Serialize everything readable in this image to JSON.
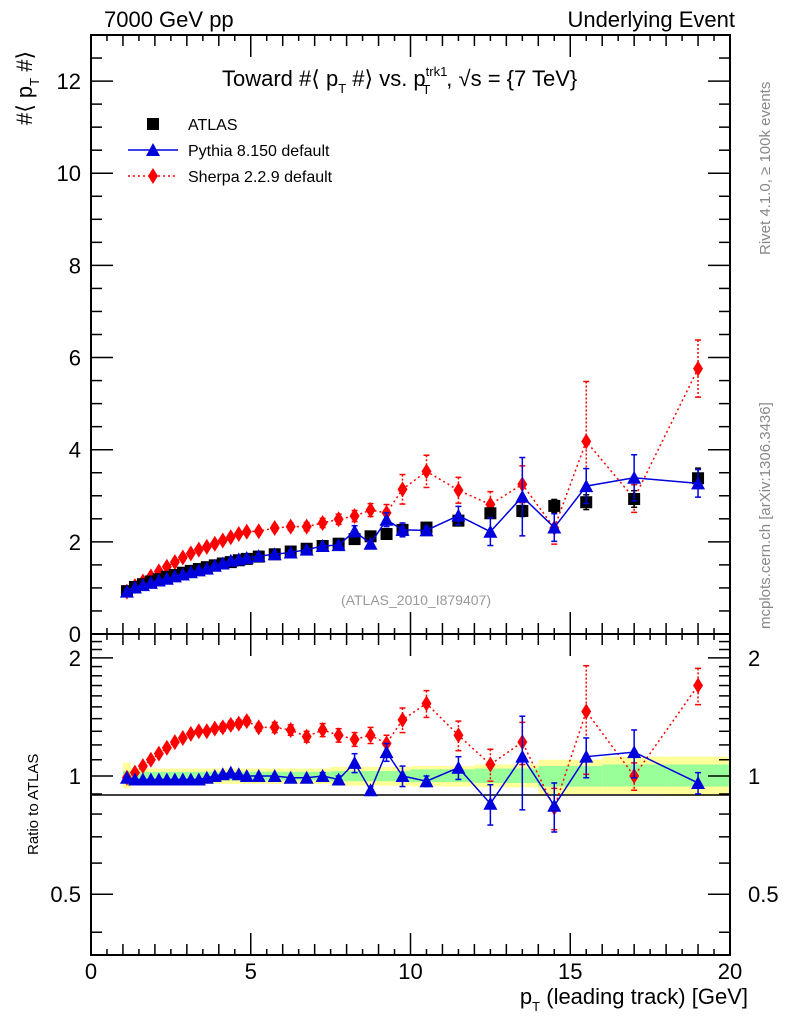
{
  "header": {
    "left": "7000 GeV pp",
    "right": "Underlying Event"
  },
  "side_text": {
    "rivet": "Rivet 4.1.0, ≥ 100k events",
    "mcplots": "mcplots.cern.ch [arXiv:1306.3436]"
  },
  "chart_data": [
    {
      "type": "line",
      "panel": "main",
      "title": "Toward #⟨ p_T #⟩ vs. p_T^trk1, √s = {7 TeV}",
      "title_parts": {
        "pre": "Toward #⟨ p",
        "sub1": "T",
        "mid": " #⟩ vs. p",
        "sup2": "trk1",
        "sub2": "T",
        "post": ", √s = {7 TeV}"
      },
      "ylabel": "#⟨ p_T #⟩",
      "xlabel": "",
      "xlim": [
        0,
        20
      ],
      "ylim": [
        0,
        13
      ],
      "xticks": [
        0,
        5,
        10,
        15,
        20
      ],
      "yticks": [
        0,
        2,
        4,
        6,
        8,
        10,
        12
      ],
      "ytick_labels": [
        "0",
        "2",
        "4",
        "6",
        "8",
        "10",
        "12"
      ],
      "watermark": "(ATLAS_2010_I879407)",
      "legend_position": "top-left",
      "x": [
        1.125,
        1.375,
        1.625,
        1.875,
        2.125,
        2.375,
        2.625,
        2.875,
        3.125,
        3.375,
        3.625,
        3.875,
        4.125,
        4.375,
        4.625,
        4.875,
        5.25,
        5.75,
        6.25,
        6.75,
        7.25,
        7.75,
        8.25,
        8.75,
        9.25,
        9.75,
        10.5,
        11.5,
        12.5,
        13.5,
        14.5,
        15.5,
        17.0,
        19.0
      ],
      "series": [
        {
          "name": "ATLAS",
          "color": "#000000",
          "marker": "square",
          "values": [
            0.93,
            1.02,
            1.08,
            1.14,
            1.19,
            1.24,
            1.28,
            1.33,
            1.37,
            1.41,
            1.45,
            1.49,
            1.53,
            1.56,
            1.6,
            1.63,
            1.68,
            1.73,
            1.79,
            1.85,
            1.91,
            1.96,
            2.06,
            2.12,
            2.17,
            2.26,
            2.31,
            2.46,
            2.62,
            2.67,
            2.78,
            2.86,
            2.93,
            3.38
          ],
          "errors": [
            0.01,
            0.01,
            0.01,
            0.01,
            0.01,
            0.01,
            0.01,
            0.01,
            0.01,
            0.01,
            0.01,
            0.01,
            0.01,
            0.01,
            0.01,
            0.01,
            0.02,
            0.02,
            0.02,
            0.02,
            0.03,
            0.03,
            0.04,
            0.04,
            0.05,
            0.05,
            0.06,
            0.08,
            0.1,
            0.12,
            0.14,
            0.16,
            0.18,
            0.22
          ]
        },
        {
          "name": "Pythia 8.150 default",
          "color": "#0000dd",
          "marker": "triangle",
          "line": "solid",
          "values": [
            0.92,
            1.01,
            1.06,
            1.11,
            1.16,
            1.2,
            1.25,
            1.29,
            1.34,
            1.38,
            1.42,
            1.48,
            1.53,
            1.59,
            1.62,
            1.65,
            1.69,
            1.73,
            1.77,
            1.83,
            1.91,
            1.93,
            2.23,
            1.96,
            2.48,
            2.26,
            2.25,
            2.57,
            2.22,
            2.98,
            2.31,
            3.21,
            3.39,
            3.27
          ],
          "errors": [
            0.01,
            0.01,
            0.01,
            0.01,
            0.01,
            0.01,
            0.01,
            0.01,
            0.01,
            0.01,
            0.01,
            0.01,
            0.01,
            0.01,
            0.01,
            0.01,
            0.02,
            0.02,
            0.02,
            0.03,
            0.04,
            0.04,
            0.12,
            0.06,
            0.15,
            0.15,
            0.08,
            0.2,
            0.3,
            0.85,
            0.3,
            0.38,
            0.5,
            0.3
          ]
        },
        {
          "name": "Sherpa 2.2.9 default",
          "color": "#ff0000",
          "marker": "diamond",
          "line": "dotted",
          "values": [
            0.92,
            1.04,
            1.14,
            1.25,
            1.36,
            1.46,
            1.56,
            1.66,
            1.75,
            1.83,
            1.89,
            1.96,
            2.03,
            2.1,
            2.17,
            2.22,
            2.23,
            2.3,
            2.33,
            2.33,
            2.41,
            2.49,
            2.56,
            2.69,
            2.63,
            3.14,
            3.53,
            3.12,
            2.81,
            3.25,
            2.3,
            4.18,
            2.94,
            5.76
          ],
          "errors": [
            0.01,
            0.01,
            0.02,
            0.02,
            0.02,
            0.02,
            0.03,
            0.03,
            0.03,
            0.03,
            0.04,
            0.04,
            0.04,
            0.05,
            0.05,
            0.05,
            0.06,
            0.07,
            0.08,
            0.09,
            0.1,
            0.11,
            0.12,
            0.14,
            0.18,
            0.32,
            0.35,
            0.28,
            0.28,
            0.4,
            0.35,
            1.3,
            0.3,
            0.62
          ]
        }
      ]
    },
    {
      "type": "line",
      "panel": "ratio",
      "ylabel": "Ratio to ATLAS",
      "xlabel": "p_T (leading track) [GeV]",
      "xlabel_parts": {
        "pre": "p",
        "sub": "T",
        "post": " (leading track) [GeV]"
      },
      "xlim": [
        0,
        20
      ],
      "ylim": [
        0.35,
        2.3
      ],
      "yscale": "log",
      "xticks": [
        0,
        5,
        10,
        15,
        20
      ],
      "xtick_labels": [
        "0",
        "5",
        "10",
        "15",
        "20"
      ],
      "yticks": [
        0.5,
        1,
        2
      ],
      "ytick_labels": [
        "0.5",
        "1",
        "2"
      ],
      "reference_line": 1.0,
      "bands": {
        "inner_color": "#99ff99",
        "outer_color": "#ffff99",
        "bins": [
          {
            "x": [
              1.0,
              1.25
            ],
            "inner": [
              0.97,
              1.03
            ],
            "outer": [
              0.93,
              1.08
            ]
          },
          {
            "x": [
              1.25,
              5.0
            ],
            "inner": [
              0.975,
              1.025
            ],
            "outer": [
              0.955,
              1.045
            ]
          },
          {
            "x": [
              5.0,
              7.5
            ],
            "inner": [
              0.975,
              1.025
            ],
            "outer": [
              0.955,
              1.045
            ]
          },
          {
            "x": [
              7.5,
              10.0
            ],
            "inner": [
              0.97,
              1.03
            ],
            "outer": [
              0.945,
              1.055
            ]
          },
          {
            "x": [
              10.0,
              12.0
            ],
            "inner": [
              0.965,
              1.04
            ],
            "outer": [
              0.94,
              1.06
            ]
          },
          {
            "x": [
              12.0,
              14.0
            ],
            "inner": [
              0.96,
              1.045
            ],
            "outer": [
              0.935,
              1.07
            ]
          },
          {
            "x": [
              14.0,
              16.0
            ],
            "inner": [
              0.94,
              1.06
            ],
            "outer": [
              0.9,
              1.1
            ]
          },
          {
            "x": [
              16.0,
              18.0
            ],
            "inner": [
              0.94,
              1.07
            ],
            "outer": [
              0.9,
              1.12
            ]
          },
          {
            "x": [
              18.0,
              20.0
            ],
            "inner": [
              0.94,
              1.07
            ],
            "outer": [
              0.89,
              1.12
            ]
          }
        ]
      },
      "x": [
        1.125,
        1.375,
        1.625,
        1.875,
        2.125,
        2.375,
        2.625,
        2.875,
        3.125,
        3.375,
        3.625,
        3.875,
        4.125,
        4.375,
        4.625,
        4.875,
        5.25,
        5.75,
        6.25,
        6.75,
        7.25,
        7.75,
        8.25,
        8.75,
        9.25,
        9.75,
        10.5,
        11.5,
        12.5,
        13.5,
        14.5,
        15.5,
        17.0,
        19.0
      ],
      "series": [
        {
          "name": "Pythia 8.150 default",
          "color": "#0000dd",
          "marker": "triangle",
          "line": "solid",
          "values": [
            0.99,
            0.98,
            0.98,
            0.98,
            0.98,
            0.98,
            0.98,
            0.98,
            0.98,
            0.98,
            0.99,
            1.0,
            1.01,
            1.02,
            1.01,
            1.0,
            1.0,
            1.0,
            0.99,
            0.99,
            1.0,
            0.98,
            1.08,
            0.92,
            1.15,
            1.0,
            0.97,
            1.05,
            0.85,
            1.12,
            0.84,
            1.12,
            1.15,
            0.96
          ],
          "errors": [
            0.01,
            0.01,
            0.01,
            0.01,
            0.01,
            0.01,
            0.01,
            0.01,
            0.01,
            0.01,
            0.01,
            0.01,
            0.01,
            0.01,
            0.01,
            0.01,
            0.01,
            0.01,
            0.01,
            0.01,
            0.02,
            0.02,
            0.06,
            0.02,
            0.06,
            0.06,
            0.03,
            0.07,
            0.1,
            0.3,
            0.12,
            0.13,
            0.16,
            0.06
          ]
        },
        {
          "name": "Sherpa 2.2.9 default",
          "color": "#ff0000",
          "marker": "diamond",
          "line": "dotted",
          "values": [
            0.99,
            1.02,
            1.06,
            1.1,
            1.14,
            1.18,
            1.22,
            1.25,
            1.28,
            1.3,
            1.3,
            1.32,
            1.33,
            1.35,
            1.36,
            1.38,
            1.33,
            1.33,
            1.31,
            1.26,
            1.31,
            1.27,
            1.24,
            1.27,
            1.21,
            1.39,
            1.53,
            1.27,
            1.07,
            1.22,
            0.83,
            1.46,
            1.0,
            1.7
          ],
          "errors": [
            0.01,
            0.01,
            0.01,
            0.01,
            0.01,
            0.02,
            0.02,
            0.02,
            0.02,
            0.02,
            0.02,
            0.02,
            0.03,
            0.03,
            0.03,
            0.03,
            0.03,
            0.04,
            0.04,
            0.04,
            0.05,
            0.05,
            0.05,
            0.06,
            0.06,
            0.1,
            0.12,
            0.11,
            0.1,
            0.15,
            0.1,
            0.45,
            0.08,
            0.18
          ]
        }
      ]
    }
  ]
}
